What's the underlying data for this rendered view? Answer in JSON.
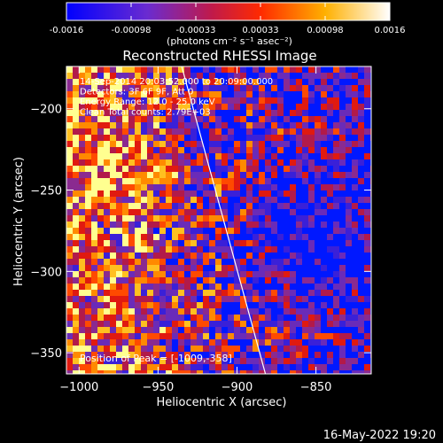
{
  "colorbar": {
    "tick_labels": [
      "-0.0016",
      "-0.00098",
      "-0.00033",
      "0.00033",
      "0.00098",
      "0.0016"
    ],
    "units_label": "(photons cm⁻² s⁻¹ asec⁻²)",
    "range": [
      -0.0016,
      0.0016
    ]
  },
  "chart_data": {
    "type": "heatmap",
    "title": "Reconstructed RHESSI Image",
    "xlabel": "Heliocentric X (arcsec)",
    "ylabel": "Heliocentric Y (arcsec)",
    "xlim": [
      -1008,
      -815
    ],
    "ylim": [
      -363,
      -174
    ],
    "x_ticks": [
      -1000,
      -950,
      -900,
      -850
    ],
    "y_ticks": [
      -200,
      -250,
      -300,
      -350
    ],
    "x_tick_labels": [
      "−1000",
      "−950",
      "−900",
      "−850"
    ],
    "y_tick_labels": [
      "−200",
      "−250",
      "−300",
      "−350"
    ],
    "info_lines": [
      "14-Sep-2014 20:03:52.000 to 20:09:00.000",
      "Detectors: 3F 6F 9F, Att 0",
      "Energy Range: 12.0 - 25.0 keV",
      "Clean     Total counts: 2.79E+03"
    ],
    "peak_label": "Position of Peak = [-1009,-358]",
    "limb_line": {
      "x_top": -935,
      "y_top": -174,
      "x_bottom": -882,
      "y_bottom": -363
    },
    "colors": {
      "scale": [
        "#0000ff",
        "#7733cc",
        "#cc1a33",
        "#ff4400",
        "#ffaa00",
        "#ffffff"
      ],
      "background": "#000000",
      "axes": "#ffffff"
    }
  },
  "footer": {
    "timestamp": "16-May-2022 19:20"
  }
}
